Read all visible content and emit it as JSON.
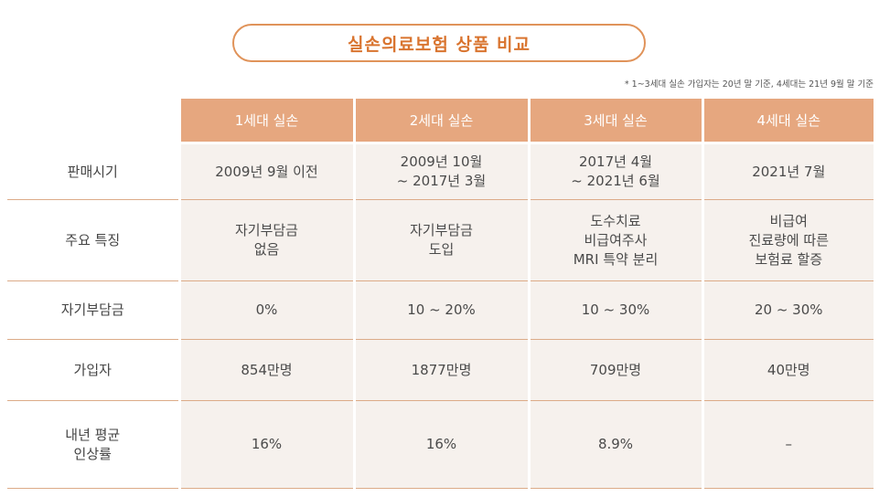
{
  "title": "실손의료보험 상품 비교",
  "footnote": "* 1~3세대 실손 가입자는 20년 말 기준, 4세대는 21년 9월 말 기준",
  "columns": [
    "1세대 실손",
    "2세대 실손",
    "3세대 실손",
    "4세대 실손"
  ],
  "rows": [
    {
      "label": "판매시기",
      "values": [
        "2009년 9월 이전",
        "2009년 10월\n~ 2017년 3월",
        "2017년 4월\n~ 2021년 6월",
        "2021년 7월"
      ]
    },
    {
      "label": "주요 특징",
      "values": [
        "자기부담금\n없음",
        "자기부담금\n도입",
        "도수치료\n비급여주사\nMRI 특약 분리",
        "비급여\n진료량에 따른\n보험료 할증"
      ]
    },
    {
      "label": "자기부담금",
      "values": [
        "0%",
        "10 ~ 20%",
        "10 ~ 30%",
        "20 ~ 30%"
      ]
    },
    {
      "label": "가입자",
      "values": [
        "854만명",
        "1877만명",
        "709만명",
        "40만명"
      ]
    },
    {
      "label": "내년 평균\n인상률",
      "values": [
        "16%",
        "16%",
        "8.9%",
        "–"
      ]
    }
  ]
}
